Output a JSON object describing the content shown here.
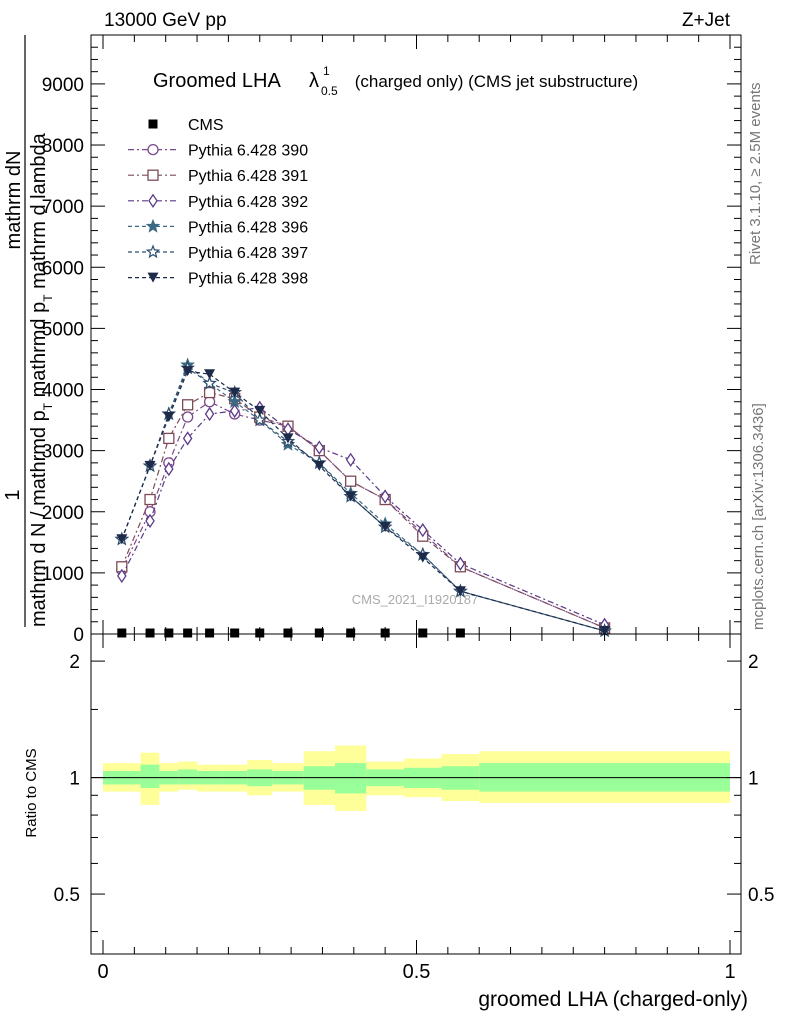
{
  "header": {
    "left": "13000 GeV pp",
    "right": "Z+Jet"
  },
  "side_labels": {
    "rivet": "Rivet 3.1.10, ≥ 2.5M events",
    "mcplots": "mcplots.cern.ch [arXiv:1306.3436]"
  },
  "watermark": "CMS_2021_I1920187",
  "chart_data": [
    {
      "panel": "main",
      "type": "line",
      "title": {
        "prefix": "Groomed LHA",
        "symbol": "λ",
        "sup": "1",
        "sub": "0.5",
        "suffix": " (charged only) (CMS jet substructure)"
      },
      "ylabel": {
        "one": "1",
        "numerator": "mathrm dN",
        "denominator_a": "mathrm d N / mathrmd p",
        "denominator_b": "T",
        "denominator_c": " mathrmd p",
        "denominator_d": "T",
        "denominator_e": " mathrm d lambda"
      },
      "xlim": [
        0,
        1
      ],
      "ylim": [
        0,
        9800
      ],
      "yticks": [
        {
          "v": 0,
          "label": "0"
        },
        {
          "v": 1000,
          "label": "1000"
        },
        {
          "v": 2000,
          "label": "2000"
        },
        {
          "v": 3000,
          "label": "3000"
        },
        {
          "v": 4000,
          "label": "4000"
        },
        {
          "v": 5000,
          "label": "5000"
        },
        {
          "v": 6000,
          "label": "6000"
        },
        {
          "v": 7000,
          "label": "7000"
        },
        {
          "v": 8000,
          "label": "8000"
        },
        {
          "v": 9000,
          "label": "9000"
        }
      ],
      "x": [
        0.03,
        0.075,
        0.105,
        0.135,
        0.17,
        0.21,
        0.25,
        0.295,
        0.345,
        0.395,
        0.45,
        0.51,
        0.57,
        0.8
      ],
      "cms": {
        "name": "CMS",
        "x": [
          0.03,
          0.075,
          0.105,
          0.135,
          0.17,
          0.21,
          0.25,
          0.295,
          0.345,
          0.395,
          0.45,
          0.51,
          0.57
        ],
        "values": [
          5,
          5,
          5,
          5,
          5,
          5,
          5,
          5,
          5,
          5,
          5,
          5,
          5
        ]
      },
      "series": [
        {
          "name": "Pythia 6.428 390",
          "color": "#7b4a8c",
          "marker": "circle-open",
          "dash": "6,3,2,3",
          "values": [
            1050,
            2000,
            2800,
            3550,
            3800,
            3600,
            3500,
            3400,
            3000,
            2500,
            2200,
            1650,
            1100,
            100
          ]
        },
        {
          "name": "Pythia 6.428 391",
          "color": "#7d4b57",
          "marker": "square-open",
          "dash": "6,3,2,3",
          "values": [
            1100,
            2200,
            3200,
            3750,
            3950,
            3850,
            3550,
            3400,
            3000,
            2500,
            2200,
            1600,
            1100,
            100
          ]
        },
        {
          "name": "Pythia 6.428 392",
          "color": "#5a3a86",
          "marker": "diamond-open",
          "dash": "6,3,2,3",
          "values": [
            950,
            1850,
            2700,
            3200,
            3600,
            3650,
            3700,
            3350,
            3050,
            2850,
            2250,
            1700,
            1150,
            150
          ]
        },
        {
          "name": "Pythia 6.428 396",
          "color": "#3c6a83",
          "marker": "star-filled",
          "dash": "4,3",
          "values": [
            1550,
            2750,
            3600,
            4400,
            4100,
            3800,
            3500,
            3100,
            2800,
            2300,
            1800,
            1300,
            700,
            50
          ]
        },
        {
          "name": "Pythia 6.428 397",
          "color": "#2f4f6f",
          "marker": "star-open",
          "dash": "4,3",
          "values": [
            1550,
            2750,
            3600,
            4350,
            4100,
            3950,
            3500,
            3150,
            2800,
            2250,
            1750,
            1300,
            700,
            50
          ]
        },
        {
          "name": "Pythia 6.428 398",
          "color": "#1e2a4a",
          "marker": "triangle-down-filled",
          "dash": "4,3",
          "values": [
            1550,
            2750,
            3550,
            4300,
            4250,
            3950,
            3650,
            3200,
            2750,
            2250,
            1750,
            1250,
            700,
            50
          ]
        }
      ]
    },
    {
      "panel": "ratio",
      "type": "area",
      "ylabel": "Ratio to CMS",
      "xlabel": "groomed LHA (charged-only)",
      "xlim": [
        0,
        1
      ],
      "ylim": [
        0.35,
        2.35
      ],
      "yscale": "log",
      "xticks": [
        {
          "v": 0,
          "label": "0"
        },
        {
          "v": 0.5,
          "label": "0.5"
        },
        {
          "v": 1,
          "label": "1"
        }
      ],
      "yticks": [
        {
          "v": 0.5,
          "label": "0.5"
        },
        {
          "v": 1,
          "label": "1"
        },
        {
          "v": 2,
          "label": "2"
        }
      ],
      "bins": [
        {
          "lo": 0,
          "hi": 0.06,
          "inner": [
            0.96,
            1.04
          ],
          "outer": [
            0.92,
            1.09
          ]
        },
        {
          "lo": 0.06,
          "hi": 0.09,
          "inner": [
            0.94,
            1.08
          ],
          "outer": [
            0.85,
            1.16
          ]
        },
        {
          "lo": 0.09,
          "hi": 0.12,
          "inner": [
            0.96,
            1.04
          ],
          "outer": [
            0.92,
            1.09
          ]
        },
        {
          "lo": 0.12,
          "hi": 0.15,
          "inner": [
            0.96,
            1.05
          ],
          "outer": [
            0.93,
            1.1
          ]
        },
        {
          "lo": 0.15,
          "hi": 0.19,
          "inner": [
            0.96,
            1.04
          ],
          "outer": [
            0.92,
            1.08
          ]
        },
        {
          "lo": 0.19,
          "hi": 0.23,
          "inner": [
            0.96,
            1.04
          ],
          "outer": [
            0.92,
            1.08
          ]
        },
        {
          "lo": 0.23,
          "hi": 0.27,
          "inner": [
            0.95,
            1.05
          ],
          "outer": [
            0.9,
            1.11
          ]
        },
        {
          "lo": 0.27,
          "hi": 0.32,
          "inner": [
            0.96,
            1.04
          ],
          "outer": [
            0.92,
            1.09
          ]
        },
        {
          "lo": 0.32,
          "hi": 0.37,
          "inner": [
            0.93,
            1.07
          ],
          "outer": [
            0.85,
            1.17
          ]
        },
        {
          "lo": 0.37,
          "hi": 0.42,
          "inner": [
            0.91,
            1.09
          ],
          "outer": [
            0.82,
            1.21
          ]
        },
        {
          "lo": 0.42,
          "hi": 0.48,
          "inner": [
            0.95,
            1.05
          ],
          "outer": [
            0.9,
            1.1
          ]
        },
        {
          "lo": 0.48,
          "hi": 0.54,
          "inner": [
            0.94,
            1.06
          ],
          "outer": [
            0.89,
            1.12
          ]
        },
        {
          "lo": 0.54,
          "hi": 0.6,
          "inner": [
            0.93,
            1.07
          ],
          "outer": [
            0.87,
            1.15
          ]
        },
        {
          "lo": 0.6,
          "hi": 1.0,
          "inner": [
            0.92,
            1.09
          ],
          "outer": [
            0.86,
            1.17
          ]
        }
      ],
      "inner_color": "#99ff99",
      "outer_color": "#ffff99"
    }
  ]
}
